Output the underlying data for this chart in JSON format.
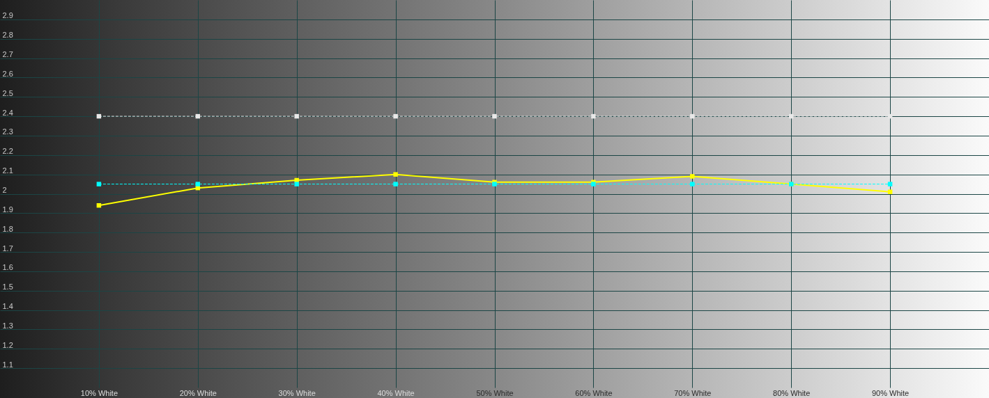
{
  "chart_data": {
    "type": "line",
    "x": [
      10,
      20,
      30,
      40,
      50,
      60,
      70,
      80,
      90
    ],
    "xlim": [
      0,
      100
    ],
    "xticks": [
      {
        "value": 10,
        "label": "10% White"
      },
      {
        "value": 20,
        "label": "20% White"
      },
      {
        "value": 30,
        "label": "30% White"
      },
      {
        "value": 40,
        "label": "40% White"
      },
      {
        "value": 50,
        "label": "50% White"
      },
      {
        "value": 60,
        "label": "60% White"
      },
      {
        "value": 70,
        "label": "70% White"
      },
      {
        "value": 80,
        "label": "80% White"
      },
      {
        "value": 90,
        "label": "90% White"
      }
    ],
    "ylim": [
      1.0,
      3.0
    ],
    "yticks": [
      1.1,
      1.2,
      1.3,
      1.4,
      1.5,
      1.6,
      1.7,
      1.8,
      1.9,
      2,
      2.1,
      2.2,
      2.3,
      2.4,
      2.5,
      2.6,
      2.7,
      2.8,
      2.9
    ],
    "grid": true,
    "marker": "square",
    "series": [
      {
        "color": "#ffff00",
        "line_style": "solid",
        "values": [
          1.94,
          2.03,
          2.07,
          2.1,
          2.06,
          2.06,
          2.09,
          2.05,
          2.01
        ]
      },
      {
        "color": "#00ffff",
        "line_style": "dashed",
        "values": [
          2.05,
          2.05,
          2.05,
          2.05,
          2.05,
          2.05,
          2.05,
          2.05,
          2.05
        ]
      },
      {
        "color": "#e8e8e8",
        "line_style": "dashed",
        "values": [
          2.4,
          2.4,
          2.4,
          2.4,
          2.4,
          2.4,
          2.4,
          2.4,
          2.4
        ]
      }
    ]
  }
}
